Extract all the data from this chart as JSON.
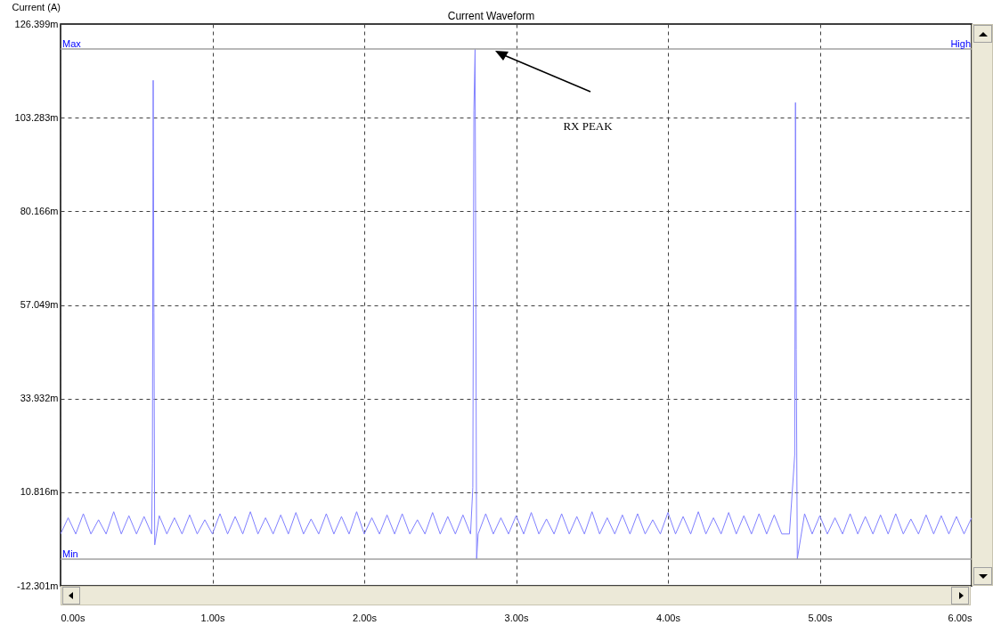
{
  "chart_data": {
    "type": "line",
    "title": "Current Waveform",
    "ylabel": "Current (A)",
    "x": [
      0,
      0.05,
      0.1,
      0.15,
      0.2,
      0.25,
      0.3,
      0.35,
      0.4,
      0.45,
      0.5,
      0.55,
      0.6,
      0.605,
      0.61,
      0.615,
      0.62,
      0.65,
      0.7,
      0.75,
      0.8,
      0.85,
      0.9,
      0.95,
      1.0,
      1.05,
      1.1,
      1.15,
      1.2,
      1.25,
      1.3,
      1.35,
      1.4,
      1.45,
      1.5,
      1.55,
      1.6,
      1.65,
      1.7,
      1.75,
      1.8,
      1.85,
      1.9,
      1.95,
      2.0,
      2.05,
      2.1,
      2.15,
      2.2,
      2.25,
      2.3,
      2.35,
      2.4,
      2.45,
      2.5,
      2.55,
      2.6,
      2.65,
      2.7,
      2.715,
      2.722,
      2.73,
      2.735,
      2.74,
      2.75,
      2.8,
      2.85,
      2.9,
      2.95,
      3.0,
      3.05,
      3.1,
      3.15,
      3.2,
      3.25,
      3.3,
      3.35,
      3.4,
      3.45,
      3.5,
      3.55,
      3.6,
      3.65,
      3.7,
      3.75,
      3.8,
      3.85,
      3.9,
      3.95,
      4.0,
      4.05,
      4.1,
      4.15,
      4.2,
      4.25,
      4.3,
      4.35,
      4.4,
      4.45,
      4.5,
      4.55,
      4.6,
      4.65,
      4.7,
      4.75,
      4.8,
      4.835,
      4.84,
      4.845,
      4.852,
      4.9,
      4.95,
      5.0,
      5.05,
      5.1,
      5.15,
      5.2,
      5.25,
      5.3,
      5.35,
      5.4,
      5.45,
      5.5,
      5.55,
      5.6,
      5.65,
      5.7,
      5.75,
      5.8,
      5.85,
      5.9,
      5.95,
      6.0
    ],
    "series": [
      {
        "color": "#8080ff",
        "values": [
          0.5,
          4.5,
          0.5,
          5.5,
          0.5,
          4,
          0.5,
          6,
          0.5,
          5,
          0.5,
          4.8,
          0.5,
          18,
          112.5,
          55,
          -2.2,
          5,
          0.5,
          4.5,
          0.5,
          5.2,
          0.5,
          4,
          0.5,
          5.5,
          0.5,
          4.8,
          0.5,
          6,
          0.5,
          4.5,
          0.5,
          5.2,
          0.5,
          5.8,
          0.5,
          4.2,
          0.5,
          5.5,
          0.5,
          4.8,
          0.5,
          6,
          0.5,
          4.5,
          0.5,
          5.2,
          0.5,
          5.5,
          0.5,
          4,
          0.5,
          5.8,
          0.5,
          4.8,
          0.5,
          5.2,
          0.5,
          12,
          105,
          120.2,
          56,
          -5.7,
          0.5,
          5.5,
          0.5,
          4.5,
          0.5,
          5,
          0.5,
          5.8,
          0.5,
          4.2,
          0.5,
          5.5,
          0.5,
          4.8,
          0.5,
          6,
          0.5,
          4.5,
          0.5,
          5.2,
          0.5,
          5.5,
          0.5,
          4,
          0.5,
          5.8,
          0.5,
          4.8,
          0.5,
          6,
          0.5,
          4.5,
          0.5,
          5.8,
          0.5,
          5,
          0.5,
          5.5,
          0.5,
          5.2,
          0.5,
          0.5,
          20,
          107,
          46,
          -5.7,
          5.5,
          0.5,
          5,
          0.5,
          4.5,
          0.5,
          5.5,
          0.5,
          4.8,
          0.5,
          5.2,
          0.5,
          5.5,
          0.5,
          4.2,
          0.5,
          5.2,
          0.5,
          5,
          0.5,
          4.8,
          0.5,
          4.5
        ]
      }
    ],
    "xlim": [
      0,
      6
    ],
    "xticks": [
      {
        "value": 0,
        "label": "0.00s"
      },
      {
        "value": 1,
        "label": "1.00s"
      },
      {
        "value": 2,
        "label": "2.00s"
      },
      {
        "value": 3,
        "label": "3.00s"
      },
      {
        "value": 4,
        "label": "4.00s"
      },
      {
        "value": 5,
        "label": "5.00s"
      },
      {
        "value": 6,
        "label": "6.00s"
      }
    ],
    "ylim": [
      -12.301,
      126.399
    ],
    "yticks": [
      {
        "value": -12.301,
        "label": "-12.301m"
      },
      {
        "value": 10.816,
        "label": "10.816m"
      },
      {
        "value": 33.932,
        "label": "33.932m"
      },
      {
        "value": 57.049,
        "label": "57.049m"
      },
      {
        "value": 80.166,
        "label": "80.166m"
      },
      {
        "value": 103.283,
        "label": "103.283m"
      },
      {
        "value": 126.399,
        "label": "126.399m"
      }
    ],
    "grid": true,
    "ref_lines": [
      {
        "axis": "y",
        "value": 120.24,
        "label": "Max",
        "color": "#a0a0a0"
      },
      {
        "axis": "y",
        "value": -5.71,
        "label": "Min",
        "color": "#a0a0a0"
      }
    ],
    "annotations": [
      "RX PEAK",
      {
        "text": "High",
        "x": 6,
        "y": 120.24
      }
    ]
  }
}
